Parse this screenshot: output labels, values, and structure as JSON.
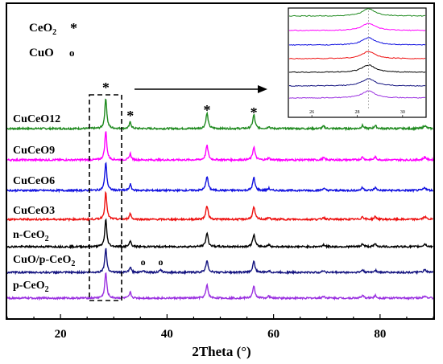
{
  "chart_data": {
    "type": "line",
    "xlabel": "2Theta (°)",
    "ylabel": "",
    "xlim": [
      10,
      90
    ],
    "xticks": [
      "20",
      "40",
      "60",
      "80"
    ],
    "legend": [
      {
        "label": "CeO",
        "sub": "2",
        "marker": "*"
      },
      {
        "label": "CuO",
        "sub": "",
        "marker": "o"
      }
    ],
    "series": [
      {
        "name": "CuCeO12",
        "sub": "",
        "color": "#1f8a1f"
      },
      {
        "name": "CuCeO9",
        "sub": "",
        "color": "#ff00ff"
      },
      {
        "name": "CuCeO6",
        "sub": "",
        "color": "#1010e0"
      },
      {
        "name": "CuCeO3",
        "sub": "",
        "color": "#ee1010"
      },
      {
        "name": "n-CeO",
        "sub": "2",
        "color": "#000000"
      },
      {
        "name": "CuO/p-CeO",
        "sub": "2",
        "color": "#141480"
      },
      {
        "name": "p-CeO",
        "sub": "2",
        "color": "#9a30e0"
      }
    ],
    "peaks_ceo2": [
      28.5,
      33.1,
      47.5,
      56.3,
      59.1,
      69.4,
      76.7,
      79.1,
      88.4
    ],
    "peaks_cuo": [
      35.5,
      38.8
    ],
    "annotations": [
      "*",
      "*",
      "*",
      "*",
      "o",
      "o"
    ],
    "inset": {
      "xlim": [
        25,
        31
      ],
      "xticks": [
        "26",
        "28",
        "30"
      ],
      "reference_x": 28.5
    }
  }
}
